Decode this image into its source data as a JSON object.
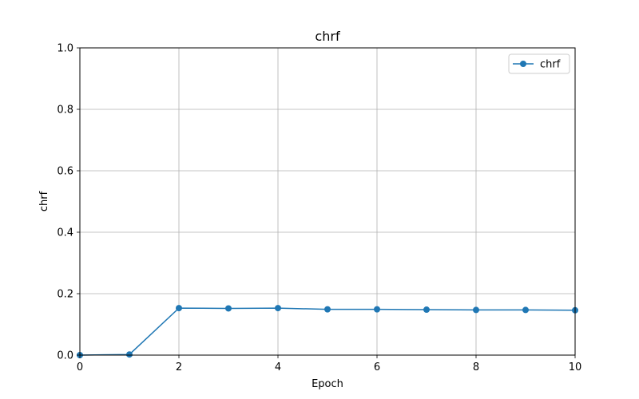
{
  "chart_data": {
    "type": "line",
    "title": "chrf",
    "xlabel": "Epoch",
    "ylabel": "chrf",
    "xlim": [
      0,
      10
    ],
    "ylim": [
      0,
      1
    ],
    "xticks": [
      "0",
      "2",
      "4",
      "6",
      "8",
      "10"
    ],
    "yticks": [
      "0.0",
      "0.2",
      "0.4",
      "0.6",
      "0.8",
      "1.0"
    ],
    "grid": true,
    "legend_position": "top-right",
    "series": [
      {
        "name": "chrf",
        "color": "#1f77b4",
        "marker": "circle",
        "x": [
          0,
          1,
          2,
          3,
          4,
          5,
          6,
          7,
          8,
          9,
          10
        ],
        "y": [
          0.0,
          0.002,
          0.153,
          0.152,
          0.153,
          0.149,
          0.149,
          0.148,
          0.147,
          0.147,
          0.146
        ]
      }
    ]
  }
}
